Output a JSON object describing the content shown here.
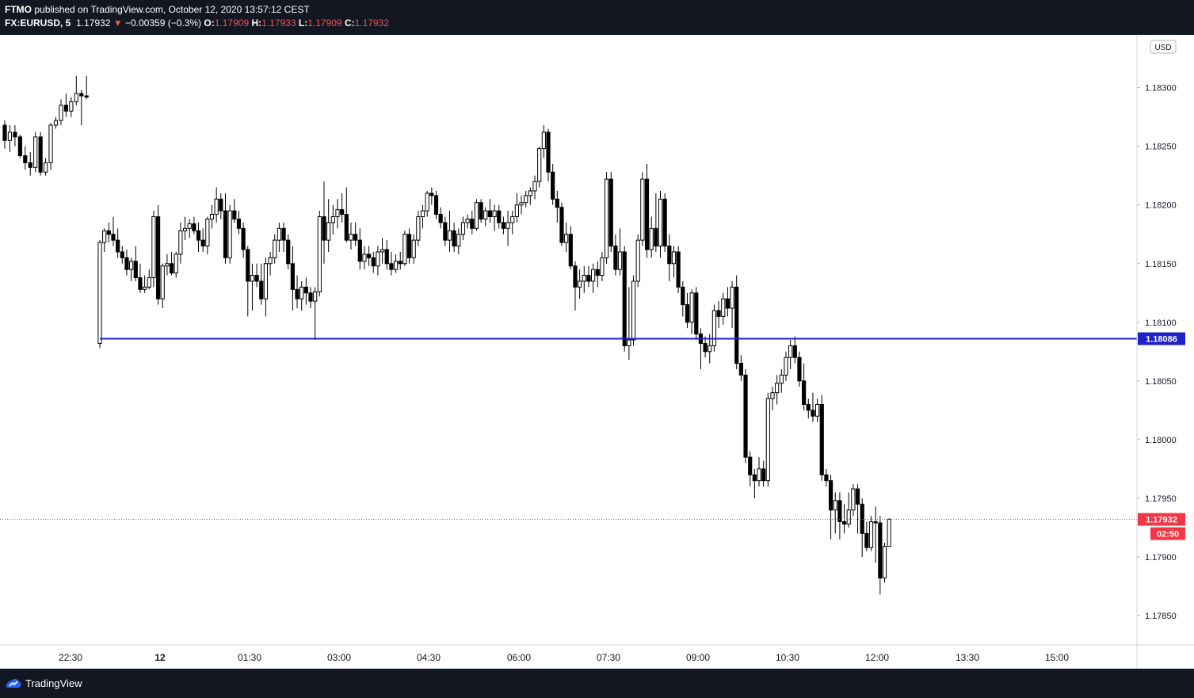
{
  "header": {
    "publisher": "FTMO",
    "published_text": "published on TradingView.com, October 12, 2020 13:57:12 CEST",
    "symbol": "FX:EURUSD, 5",
    "last_price": "1.17932",
    "change": "−0.00359 (−0.3%)",
    "o_label": "O:",
    "o_value": "1.17909",
    "h_label": "H:",
    "h_value": "1.17933",
    "l_label": "L:",
    "l_value": "1.17909",
    "c_label": "C:",
    "c_value": "1.17932"
  },
  "footer": {
    "brand": "TradingView"
  },
  "colors": {
    "hline": "#1e22c9",
    "price_tag": "#f23645",
    "background_frame": "#131722"
  },
  "chart_data": {
    "type": "candlestick",
    "currency_label": "USD",
    "y_ticks": [
      "1.18300",
      "1.18250",
      "1.18200",
      "1.18150",
      "1.18100",
      "1.18050",
      "1.18000",
      "1.17950",
      "1.17900",
      "1.17850"
    ],
    "x_ticks": [
      "22:30",
      "12",
      "01:30",
      "03:00",
      "04:30",
      "06:00",
      "07:30",
      "09:00",
      "10:30",
      "12:00",
      "13:30",
      "15:00"
    ],
    "horizontal_line": {
      "value": 1.18086,
      "label": "1.18086"
    },
    "last_price": {
      "value": 1.17932,
      "label": "1.17932",
      "countdown": "02:50"
    },
    "ylim": [
      1.17825,
      1.18345
    ],
    "candles": [
      [
        1.18268,
        1.18272,
        1.18248,
        1.18255
      ],
      [
        1.18255,
        1.18268,
        1.18245,
        1.18262
      ],
      [
        1.18262,
        1.18268,
        1.1825,
        1.18258
      ],
      [
        1.18258,
        1.1826,
        1.1824,
        1.18242
      ],
      [
        1.18242,
        1.1825,
        1.1823,
        1.18236
      ],
      [
        1.18236,
        1.18245,
        1.18225,
        1.18232
      ],
      [
        1.18232,
        1.18262,
        1.18228,
        1.18258
      ],
      [
        1.18258,
        1.18262,
        1.18225,
        1.18228
      ],
      [
        1.18228,
        1.1824,
        1.18225,
        1.18236
      ],
      [
        1.18236,
        1.1827,
        1.1823,
        1.18268
      ],
      [
        1.18268,
        1.18275,
        1.18265,
        1.18272
      ],
      [
        1.18272,
        1.1829,
        1.18268,
        1.18285
      ],
      [
        1.18285,
        1.18295,
        1.18275,
        1.1828
      ],
      [
        1.1828,
        1.18292,
        1.18275,
        1.18288
      ],
      [
        1.18288,
        1.1831,
        1.18285,
        1.18295
      ],
      [
        1.18295,
        1.18298,
        1.18268,
        1.18293
      ],
      [
        1.18293,
        1.1831,
        1.1829,
        1.18292
      ],
      [
        1.18082,
        1.1817,
        1.18078,
        1.18168
      ],
      [
        1.18168,
        1.1818,
        1.1816,
        1.18178
      ],
      [
        1.18178,
        1.18185,
        1.18168,
        1.18175
      ],
      [
        1.18175,
        1.1819,
        1.18165,
        1.1817
      ],
      [
        1.1817,
        1.1818,
        1.18155,
        1.1816
      ],
      [
        1.1816,
        1.18165,
        1.1815,
        1.18155
      ],
      [
        1.18155,
        1.18162,
        1.1814,
        1.18145
      ],
      [
        1.18145,
        1.18155,
        1.18135,
        1.18152
      ],
      [
        1.18152,
        1.18165,
        1.18135,
        1.18138
      ],
      [
        1.18138,
        1.1815,
        1.18125,
        1.18128
      ],
      [
        1.18128,
        1.1814,
        1.18125,
        1.1813
      ],
      [
        1.1813,
        1.18145,
        1.18128,
        1.18138
      ],
      [
        1.18138,
        1.18195,
        1.1813,
        1.1819
      ],
      [
        1.1819,
        1.182,
        1.18115,
        1.1812
      ],
      [
        1.1812,
        1.1815,
        1.18112,
        1.18148
      ],
      [
        1.18148,
        1.18158,
        1.1814,
        1.1815
      ],
      [
        1.1815,
        1.1816,
        1.1814,
        1.18142
      ],
      [
        1.18142,
        1.1816,
        1.18138,
        1.18158
      ],
      [
        1.18158,
        1.18185,
        1.1815,
        1.18178
      ],
      [
        1.18178,
        1.1819,
        1.1817,
        1.1818
      ],
      [
        1.1818,
        1.18188,
        1.18172,
        1.18184
      ],
      [
        1.18184,
        1.1819,
        1.18175,
        1.18178
      ],
      [
        1.18178,
        1.18185,
        1.1816,
        1.1817
      ],
      [
        1.1817,
        1.1818,
        1.1816,
        1.18165
      ],
      [
        1.18165,
        1.1819,
        1.18158,
        1.18188
      ],
      [
        1.18188,
        1.182,
        1.1818,
        1.18192
      ],
      [
        1.18192,
        1.18215,
        1.18185,
        1.18205
      ],
      [
        1.18205,
        1.1821,
        1.18188,
        1.18195
      ],
      [
        1.18195,
        1.1821,
        1.1815,
        1.18155
      ],
      [
        1.18155,
        1.182,
        1.1815,
        1.18195
      ],
      [
        1.18195,
        1.18205,
        1.18185,
        1.18188
      ],
      [
        1.18188,
        1.18195,
        1.18175,
        1.1818
      ],
      [
        1.1818,
        1.18185,
        1.18155,
        1.18162
      ],
      [
        1.18162,
        1.18165,
        1.18105,
        1.18135
      ],
      [
        1.18135,
        1.1815,
        1.1811,
        1.1814
      ],
      [
        1.1814,
        1.1815,
        1.1813,
        1.18135
      ],
      [
        1.18135,
        1.1815,
        1.18115,
        1.1812
      ],
      [
        1.1812,
        1.18155,
        1.18105,
        1.1815
      ],
      [
        1.1815,
        1.1816,
        1.1814,
        1.18155
      ],
      [
        1.18155,
        1.18175,
        1.1815,
        1.1817
      ],
      [
        1.1817,
        1.18185,
        1.1816,
        1.1818
      ],
      [
        1.1818,
        1.18185,
        1.1816,
        1.1817
      ],
      [
        1.1817,
        1.18175,
        1.18145,
        1.1815
      ],
      [
        1.1815,
        1.18165,
        1.1811,
        1.18128
      ],
      [
        1.18128,
        1.1814,
        1.18112,
        1.1812
      ],
      [
        1.1812,
        1.18135,
        1.1811,
        1.1813
      ],
      [
        1.1813,
        1.18138,
        1.18115,
        1.18125
      ],
      [
        1.18125,
        1.1813,
        1.18112,
        1.18118
      ],
      [
        1.18118,
        1.1813,
        1.18085,
        1.18126
      ],
      [
        1.18126,
        1.18195,
        1.18122,
        1.1819
      ],
      [
        1.1819,
        1.1822,
        1.1815,
        1.1817
      ],
      [
        1.1817,
        1.18205,
        1.1816,
        1.18185
      ],
      [
        1.18185,
        1.182,
        1.18175,
        1.1819
      ],
      [
        1.1819,
        1.18205,
        1.1818,
        1.18196
      ],
      [
        1.18196,
        1.1821,
        1.18185,
        1.18192
      ],
      [
        1.18192,
        1.18215,
        1.18168,
        1.1817
      ],
      [
        1.1817,
        1.18185,
        1.18162,
        1.18175
      ],
      [
        1.18175,
        1.18185,
        1.18165,
        1.1817
      ],
      [
        1.1817,
        1.1818,
        1.18145,
        1.18152
      ],
      [
        1.18152,
        1.18165,
        1.18145,
        1.18158
      ],
      [
        1.18158,
        1.18165,
        1.18148,
        1.18155
      ],
      [
        1.18155,
        1.1816,
        1.18142,
        1.18148
      ],
      [
        1.18148,
        1.18165,
        1.1814,
        1.1816
      ],
      [
        1.1816,
        1.18172,
        1.1815,
        1.18162
      ],
      [
        1.18162,
        1.1817,
        1.18145,
        1.1815
      ],
      [
        1.1815,
        1.1816,
        1.1814,
        1.18145
      ],
      [
        1.18145,
        1.18158,
        1.18142,
        1.18152
      ],
      [
        1.18152,
        1.1816,
        1.18145,
        1.1815
      ],
      [
        1.1815,
        1.18178,
        1.18148,
        1.18175
      ],
      [
        1.18175,
        1.1818,
        1.1815,
        1.18155
      ],
      [
        1.18155,
        1.18175,
        1.1815,
        1.1817
      ],
      [
        1.1817,
        1.18195,
        1.18165,
        1.1819
      ],
      [
        1.1819,
        1.182,
        1.1818,
        1.18195
      ],
      [
        1.18195,
        1.18212,
        1.1819,
        1.1821
      ],
      [
        1.1821,
        1.18215,
        1.182,
        1.18208
      ],
      [
        1.18208,
        1.18212,
        1.18188,
        1.18192
      ],
      [
        1.18192,
        1.18198,
        1.1818,
        1.18185
      ],
      [
        1.18185,
        1.1819,
        1.18165,
        1.1817
      ],
      [
        1.1817,
        1.18195,
        1.1816,
        1.18178
      ],
      [
        1.18178,
        1.18185,
        1.1816,
        1.18165
      ],
      [
        1.18165,
        1.1818,
        1.18158,
        1.18175
      ],
      [
        1.18175,
        1.1819,
        1.1817,
        1.18185
      ],
      [
        1.18185,
        1.18192,
        1.1818,
        1.18188
      ],
      [
        1.18188,
        1.18195,
        1.18175,
        1.1818
      ],
      [
        1.1818,
        1.18205,
        1.18178,
        1.18202
      ],
      [
        1.18202,
        1.18205,
        1.18185,
        1.18188
      ],
      [
        1.18188,
        1.18198,
        1.18182,
        1.18195
      ],
      [
        1.18195,
        1.18205,
        1.18185,
        1.1819
      ],
      [
        1.1819,
        1.182,
        1.18178,
        1.18195
      ],
      [
        1.18195,
        1.182,
        1.1818,
        1.18185
      ],
      [
        1.18185,
        1.1819,
        1.18175,
        1.1818
      ],
      [
        1.1818,
        1.18195,
        1.18165,
        1.18185
      ],
      [
        1.18185,
        1.18195,
        1.18175,
        1.1819
      ],
      [
        1.1819,
        1.1821,
        1.18185,
        1.182
      ],
      [
        1.182,
        1.18208,
        1.18192,
        1.18202
      ],
      [
        1.18202,
        1.18212,
        1.18198,
        1.18208
      ],
      [
        1.18208,
        1.18215,
        1.182,
        1.18212
      ],
      [
        1.18212,
        1.18225,
        1.18205,
        1.1822
      ],
      [
        1.1822,
        1.1825,
        1.18215,
        1.18248
      ],
      [
        1.18248,
        1.18268,
        1.1824,
        1.18262
      ],
      [
        1.18262,
        1.18265,
        1.1822,
        1.18228
      ],
      [
        1.18228,
        1.18235,
        1.182,
        1.18205
      ],
      [
        1.18205,
        1.18212,
        1.18185,
        1.18198
      ],
      [
        1.18198,
        1.18202,
        1.18165,
        1.18168
      ],
      [
        1.18168,
        1.18185,
        1.1816,
        1.18175
      ],
      [
        1.18175,
        1.18182,
        1.18145,
        1.18148
      ],
      [
        1.18148,
        1.18152,
        1.1811,
        1.1813
      ],
      [
        1.1813,
        1.18145,
        1.1812,
        1.18135
      ],
      [
        1.18135,
        1.18148,
        1.18125,
        1.1814
      ],
      [
        1.1814,
        1.18148,
        1.1813,
        1.18135
      ],
      [
        1.18135,
        1.1815,
        1.18125,
        1.18145
      ],
      [
        1.18145,
        1.18152,
        1.1813,
        1.1814
      ],
      [
        1.1814,
        1.1816,
        1.18135,
        1.18155
      ],
      [
        1.18155,
        1.18228,
        1.1815,
        1.18222
      ],
      [
        1.18222,
        1.18228,
        1.1816,
        1.18165
      ],
      [
        1.18165,
        1.18175,
        1.1814,
        1.18145
      ],
      [
        1.18145,
        1.1818,
        1.1814,
        1.1816
      ],
      [
        1.1816,
        1.18165,
        1.18075,
        1.1808
      ],
      [
        1.1808,
        1.1813,
        1.18068,
        1.18085
      ],
      [
        1.18085,
        1.1814,
        1.1808,
        1.18135
      ],
      [
        1.18135,
        1.18175,
        1.1813,
        1.1817
      ],
      [
        1.1817,
        1.18228,
        1.18165,
        1.18222
      ],
      [
        1.18222,
        1.18235,
        1.18155,
        1.18162
      ],
      [
        1.18162,
        1.1819,
        1.18155,
        1.1818
      ],
      [
        1.1818,
        1.1821,
        1.1816,
        1.18165
      ],
      [
        1.18165,
        1.18212,
        1.18155,
        1.18205
      ],
      [
        1.18205,
        1.1821,
        1.1816,
        1.18165
      ],
      [
        1.18165,
        1.18175,
        1.18135,
        1.1815
      ],
      [
        1.1815,
        1.18165,
        1.18138,
        1.1816
      ],
      [
        1.1816,
        1.18165,
        1.18125,
        1.1813
      ],
      [
        1.1813,
        1.18135,
        1.18105,
        1.18115
      ],
      [
        1.18115,
        1.18125,
        1.18095,
        1.181
      ],
      [
        1.181,
        1.18128,
        1.1809,
        1.18125
      ],
      [
        1.18125,
        1.1813,
        1.18085,
        1.1809
      ],
      [
        1.1809,
        1.18095,
        1.1806,
        1.18082
      ],
      [
        1.18082,
        1.18088,
        1.1807,
        1.18075
      ],
      [
        1.18075,
        1.1809,
        1.18065,
        1.1808
      ],
      [
        1.1808,
        1.18115,
        1.18075,
        1.1811
      ],
      [
        1.1811,
        1.18118,
        1.18095,
        1.18105
      ],
      [
        1.18105,
        1.18125,
        1.18098,
        1.1812
      ],
      [
        1.1812,
        1.1813,
        1.18105,
        1.18112
      ],
      [
        1.18112,
        1.18135,
        1.18095,
        1.1813
      ],
      [
        1.1813,
        1.1814,
        1.1806,
        1.18065
      ],
      [
        1.18065,
        1.18072,
        1.1805,
        1.18055
      ],
      [
        1.18055,
        1.1806,
        1.1798,
        1.17985
      ],
      [
        1.17985,
        1.1799,
        1.1796,
        1.1797
      ],
      [
        1.1797,
        1.17975,
        1.1795,
        1.17965
      ],
      [
        1.17965,
        1.17985,
        1.1796,
        1.17975
      ],
      [
        1.17975,
        1.17982,
        1.1796,
        1.17965
      ],
      [
        1.17965,
        1.1804,
        1.1796,
        1.18035
      ],
      [
        1.18035,
        1.18045,
        1.18025,
        1.1804
      ],
      [
        1.1804,
        1.18055,
        1.1803,
        1.18048
      ],
      [
        1.18048,
        1.1806,
        1.1804,
        1.18055
      ],
      [
        1.18055,
        1.18075,
        1.1805,
        1.1807
      ],
      [
        1.1807,
        1.18085,
        1.1806,
        1.1808
      ],
      [
        1.1808,
        1.18088,
        1.18065,
        1.1807
      ],
      [
        1.1807,
        1.18075,
        1.18045,
        1.1805
      ],
      [
        1.1805,
        1.18065,
        1.18025,
        1.1803
      ],
      [
        1.1803,
        1.18035,
        1.18018,
        1.18025
      ],
      [
        1.18025,
        1.1804,
        1.18015,
        1.1802
      ],
      [
        1.1802,
        1.18035,
        1.18015,
        1.1803
      ],
      [
        1.1803,
        1.18038,
        1.17965,
        1.1797
      ],
      [
        1.1797,
        1.17975,
        1.1796,
        1.17965
      ],
      [
        1.17965,
        1.1797,
        1.17915,
        1.1794
      ],
      [
        1.1794,
        1.17955,
        1.1792,
        1.17948
      ],
      [
        1.17948,
        1.17955,
        1.17915,
        1.1793
      ],
      [
        1.1793,
        1.17945,
        1.1792,
        1.17928
      ],
      [
        1.17928,
        1.17955,
        1.17925,
        1.1794
      ],
      [
        1.1794,
        1.17962,
        1.17935,
        1.17958
      ],
      [
        1.17958,
        1.17962,
        1.1792,
        1.17945
      ],
      [
        1.17945,
        1.1795,
        1.179,
        1.1792
      ],
      [
        1.1792,
        1.1793,
        1.17905,
        1.17908
      ],
      [
        1.17908,
        1.17935,
        1.17905,
        1.1793
      ],
      [
        1.1793,
        1.17943,
        1.17895,
        1.17929
      ],
      [
        1.17929,
        1.17935,
        1.17868,
        1.17882
      ],
      [
        1.17882,
        1.17912,
        1.17878,
        1.17909
      ],
      [
        1.17909,
        1.17933,
        1.17909,
        1.17932
      ]
    ]
  }
}
